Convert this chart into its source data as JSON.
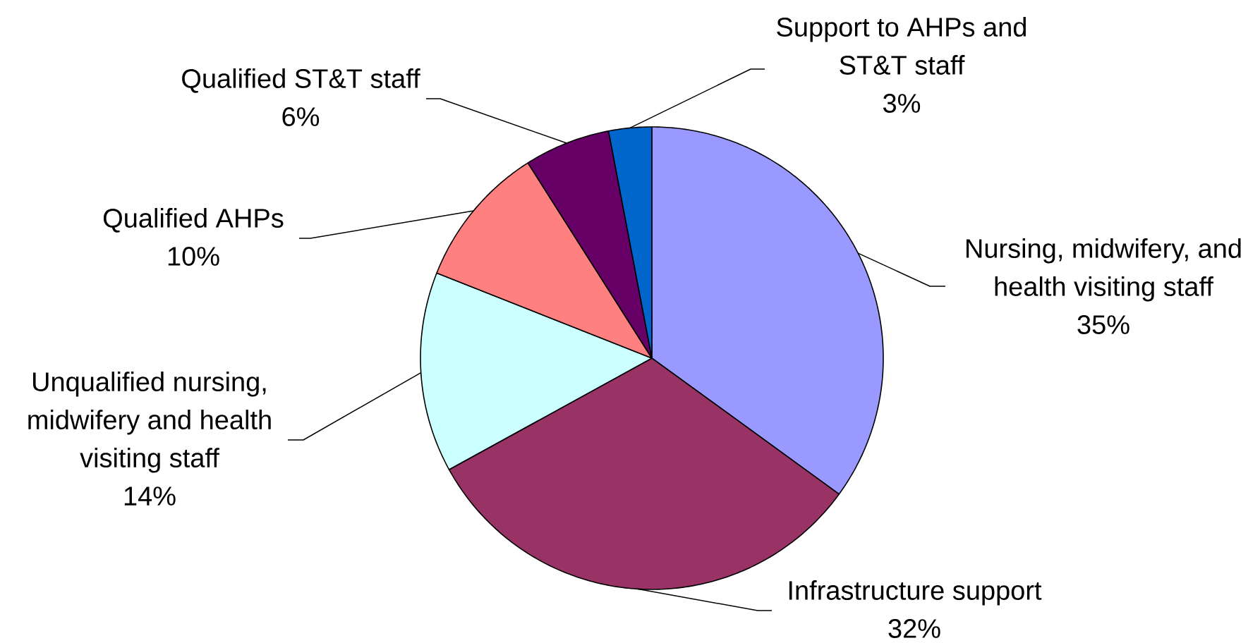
{
  "chart_data": {
    "type": "pie",
    "categories": [
      "Nursing, midwifery, and health visiting staff",
      "Infrastructure support",
      "Unqualified nursing, midwifery and health visiting staff",
      "Qualified AHPs",
      "Qualified ST&T staff",
      "Support to AHPs and ST&T staff"
    ],
    "values": [
      35,
      32,
      14,
      10,
      6,
      3
    ],
    "colors": [
      "#9999ff",
      "#993366",
      "#ccffff",
      "#ff8080",
      "#660066",
      "#0066cc"
    ],
    "value_labels": [
      "35%",
      "32%",
      "14%",
      "10%",
      "6%",
      "3%"
    ]
  }
}
